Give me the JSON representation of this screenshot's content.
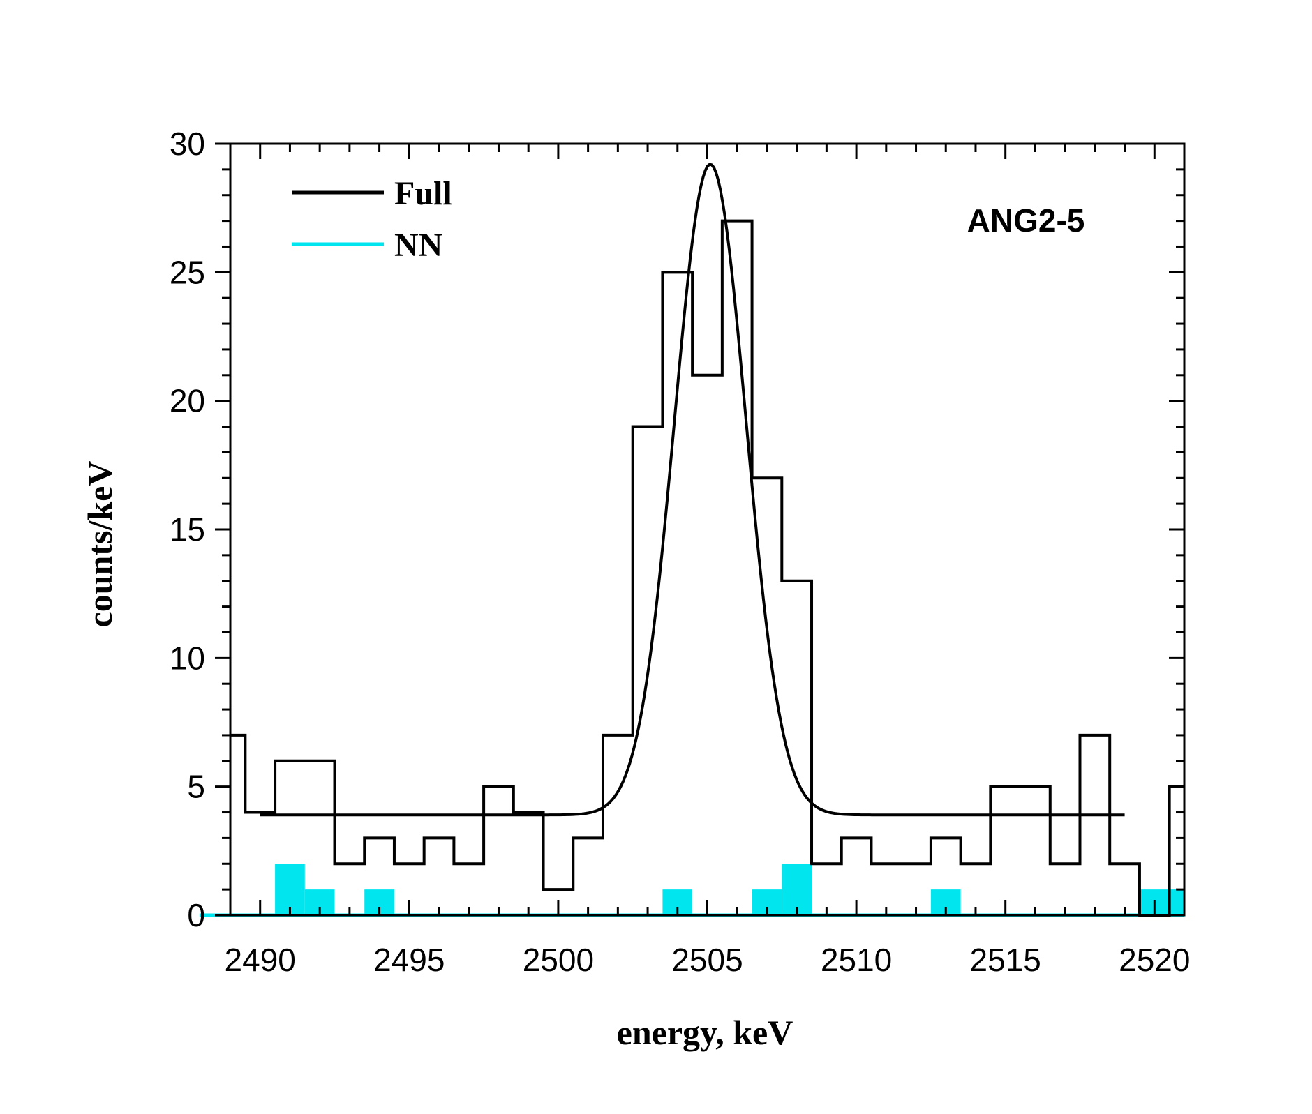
{
  "chart_data": {
    "type": "histogram",
    "title": "",
    "annotation": "ANG2-5",
    "xlabel": "energy, keV",
    "ylabel": "counts/keV",
    "xlim": [
      2489,
      2521
    ],
    "ylim": [
      0,
      30
    ],
    "xticks": [
      2490,
      2495,
      2500,
      2505,
      2510,
      2515,
      2520
    ],
    "yticks": [
      0,
      5,
      10,
      15,
      20,
      25,
      30
    ],
    "grid": false,
    "legend": {
      "placement": "top-left",
      "entries": [
        {
          "label": "Full",
          "color": "#000000"
        },
        {
          "label": "NN",
          "color": "#00e5ee"
        }
      ]
    },
    "series": [
      {
        "name": "Full",
        "color": "#000000",
        "style": "step",
        "bin_edges": [
          2489,
          2489.5,
          2490.5,
          2491.5,
          2492.5,
          2493.5,
          2494.5,
          2495.5,
          2496.5,
          2497.5,
          2498.5,
          2499.5,
          2500.5,
          2501.5,
          2502.5,
          2503.5,
          2504.5,
          2505.5,
          2506.5,
          2507.5,
          2508.5,
          2509.5,
          2510.5,
          2511.5,
          2512.5,
          2513.5,
          2514.5,
          2515.5,
          2516.5,
          2517.5,
          2518.5,
          2519.5,
          2520.5,
          2521
        ],
        "counts": [
          7,
          4,
          6,
          6,
          2,
          3,
          2,
          3,
          2,
          5,
          4,
          1,
          3,
          7,
          19,
          25,
          21,
          27,
          17,
          13,
          2,
          3,
          2,
          2,
          3,
          2,
          5,
          5,
          2,
          7,
          2,
          0,
          5
        ]
      },
      {
        "name": "NN",
        "color": "#00e5ee",
        "style": "filled-step",
        "bin_edges": [
          2489,
          2489.5,
          2490.5,
          2491.5,
          2492.5,
          2493.5,
          2494.5,
          2495.5,
          2496.5,
          2497.5,
          2498.5,
          2499.5,
          2500.5,
          2501.5,
          2502.5,
          2503.5,
          2504.5,
          2505.5,
          2506.5,
          2507.5,
          2508.5,
          2509.5,
          2510.5,
          2511.5,
          2512.5,
          2513.5,
          2514.5,
          2515.5,
          2516.5,
          2517.5,
          2518.5,
          2519.5,
          2520.5,
          2521
        ],
        "counts": [
          0,
          0,
          2,
          1,
          0,
          1,
          0,
          0,
          0,
          0,
          0,
          0,
          0,
          0,
          0,
          1,
          0,
          0,
          1,
          2,
          0,
          0,
          0,
          0,
          1,
          0,
          0,
          0,
          0,
          0,
          0,
          1,
          1
        ]
      }
    ],
    "fit": {
      "name": "Gaussian fit",
      "color": "#000000",
      "background": 3.9,
      "amplitude": 25.3,
      "mean": 2505.1,
      "sigma": 1.2,
      "x_range": [
        2490,
        2519
      ]
    }
  }
}
